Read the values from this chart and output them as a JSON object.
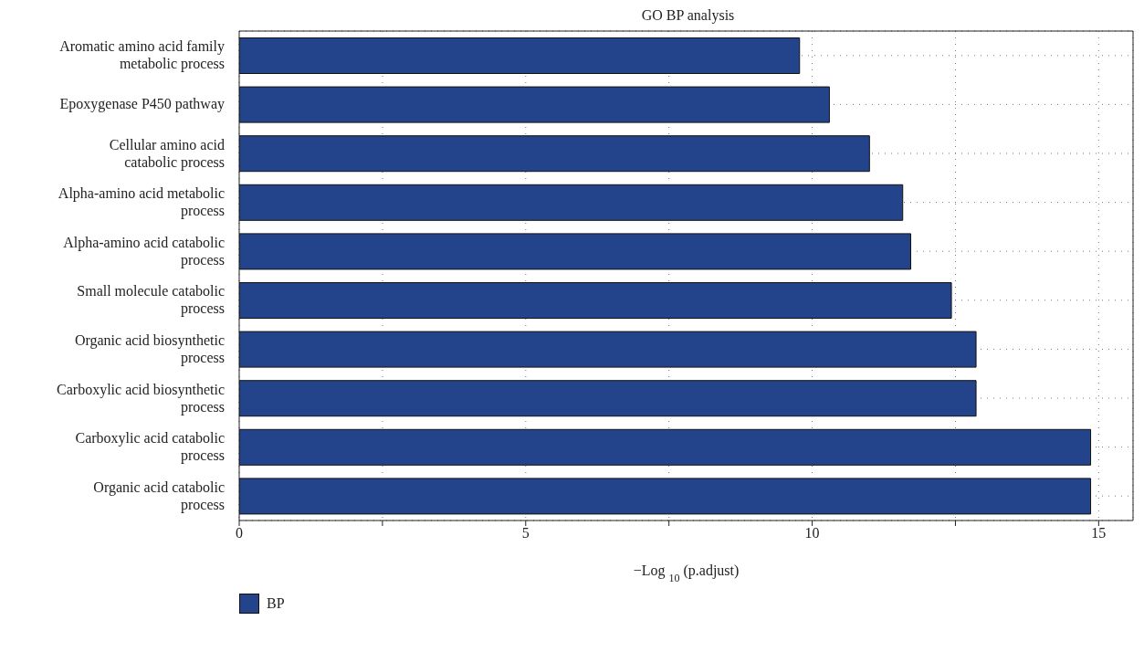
{
  "chart_data": {
    "type": "bar",
    "orientation": "horizontal",
    "title": "GO BP analysis",
    "xlabel": "−Log $_{10}$ (p.adjust)",
    "categories": [
      "Aromatic amino acid family metabolic process",
      "Epoxygenase P450 pathway",
      "Cellular amino acid catabolic process",
      "Alpha-amino acid metabolic process",
      "Alpha-amino acid catabolic process",
      "Small molecule catabolic process",
      "Organic acid biosynthetic process",
      "Carboxylic acid biosynthetic process",
      "Carboxylic acid catabolic process",
      "Organic acid catabolic process"
    ],
    "series": [
      {
        "name": "BP",
        "color": "#23448a",
        "values": [
          9.78,
          10.3,
          11.0,
          11.58,
          11.72,
          12.43,
          12.86,
          12.86,
          14.86,
          14.86
        ]
      }
    ],
    "xlim": [
      0,
      15.6
    ],
    "xticks": [
      0,
      {
        "value": 2.5,
        "label": null
      },
      5,
      {
        "value": 7.5,
        "label": null
      },
      10,
      {
        "value": 12.5,
        "label": null
      },
      15
    ],
    "grid": true,
    "line_style": "dotted",
    "legend": "bottom left"
  }
}
